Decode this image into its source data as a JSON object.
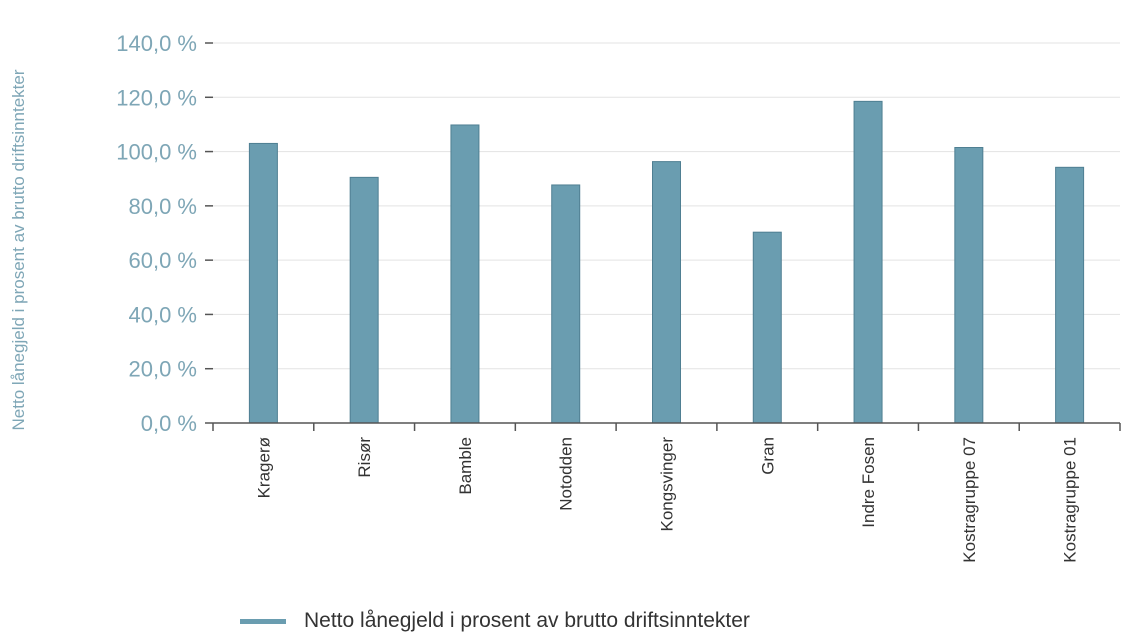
{
  "chart_data": {
    "type": "bar",
    "ylabel": "Netto lånegjeld i prosent av brutto driftsinntekter",
    "categories": [
      "Kragerø",
      "Risør",
      "Bamble",
      "Notodden",
      "Kongsvinger",
      "Gran",
      "Indre Fosen",
      "Kostragruppe 07",
      "Kostragruppe 01"
    ],
    "series": [
      {
        "name": "Netto lånegjeld i prosent av brutto driftsinntekter",
        "values": [
          103.0,
          90.5,
          109.8,
          87.7,
          96.3,
          70.3,
          118.5,
          101.5,
          94.2
        ]
      }
    ],
    "ylim": [
      0,
      140
    ],
    "yticks": [
      "0,0 %",
      "20,0 %",
      "40,0 %",
      "60,0 %",
      "80,0 %",
      "100,0 %",
      "120,0 %",
      "140,0 %"
    ],
    "grid": true,
    "legend_position": "bottom",
    "bar_color": "#6a9db0"
  }
}
